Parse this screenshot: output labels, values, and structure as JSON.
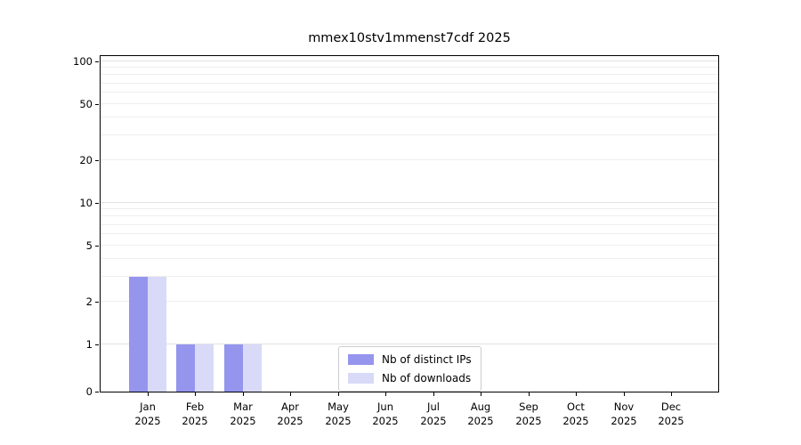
{
  "chart_data": {
    "type": "bar",
    "title": "mmex10stv1mmenst7cdf 2025",
    "categories": [
      "Jan",
      "Feb",
      "Mar",
      "Apr",
      "May",
      "Jun",
      "Jul",
      "Aug",
      "Sep",
      "Oct",
      "Nov",
      "Dec"
    ],
    "year": "2025",
    "series": [
      {
        "name": "Nb of distinct IPs",
        "color": "#9595ee",
        "values": [
          3,
          1,
          1,
          0,
          0,
          0,
          0,
          0,
          0,
          0,
          0,
          0
        ]
      },
      {
        "name": "Nb of downloads",
        "color": "#d9d9f8",
        "values": [
          3,
          1,
          1,
          0,
          0,
          0,
          0,
          0,
          0,
          0,
          0,
          0
        ]
      }
    ],
    "yticks": [
      0,
      1,
      2,
      5,
      10,
      20,
      50,
      100
    ],
    "ylim": [
      0,
      100
    ],
    "yscale": "symlog",
    "grid": "horizontal-minor-and-major",
    "legend_position": "bottom-center-inside",
    "xlabel": "",
    "ylabel": ""
  }
}
